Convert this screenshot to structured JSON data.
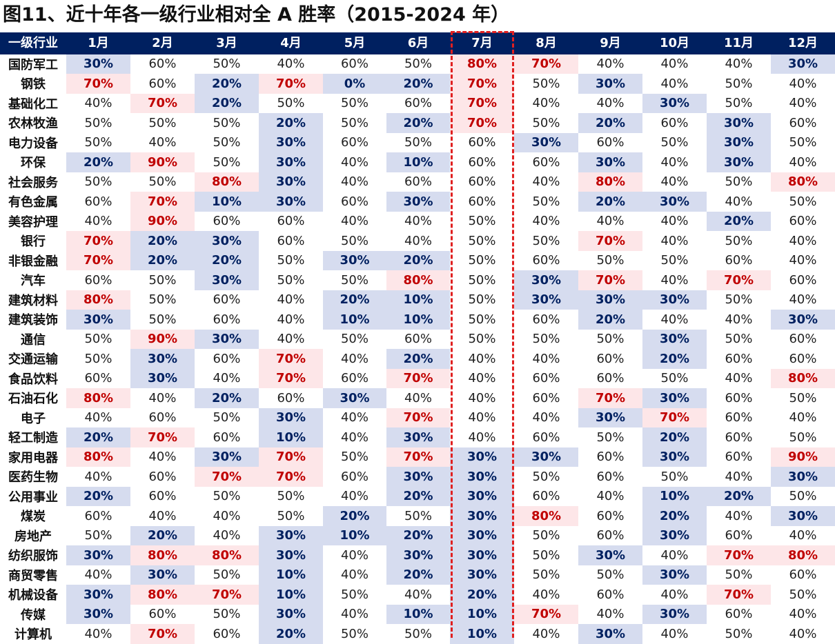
{
  "title": "图11、近十年各一级行业相对全 A 胜率（2015-2024 年）",
  "colors": {
    "header_bg": "#002060",
    "high_bg": "#fde6e8",
    "high_text": "#c00000",
    "low_bg": "#d6dcef",
    "low_text": "#002060",
    "highlight_border": "#e02020"
  },
  "chart_data": {
    "type": "table",
    "highlighted_column": "7月",
    "corner_label": "一级行业",
    "columns": [
      "1月",
      "2月",
      "3月",
      "4月",
      "5月",
      "6月",
      "7月",
      "8月",
      "9月",
      "10月",
      "11月",
      "12月"
    ],
    "rows": [
      {
        "label": "国防军工",
        "values": [
          "30%",
          "60%",
          "50%",
          "40%",
          "60%",
          "50%",
          "80%",
          "70%",
          "40%",
          "40%",
          "40%",
          "30%"
        ]
      },
      {
        "label": "钢铁",
        "values": [
          "70%",
          "60%",
          "20%",
          "70%",
          "0%",
          "20%",
          "70%",
          "50%",
          "30%",
          "40%",
          "50%",
          "40%"
        ]
      },
      {
        "label": "基础化工",
        "values": [
          "40%",
          "70%",
          "20%",
          "50%",
          "50%",
          "60%",
          "70%",
          "40%",
          "40%",
          "30%",
          "50%",
          "40%"
        ]
      },
      {
        "label": "农林牧渔",
        "values": [
          "50%",
          "50%",
          "50%",
          "20%",
          "50%",
          "20%",
          "70%",
          "50%",
          "20%",
          "60%",
          "30%",
          "60%"
        ]
      },
      {
        "label": "电力设备",
        "values": [
          "50%",
          "40%",
          "50%",
          "30%",
          "60%",
          "50%",
          "60%",
          "30%",
          "60%",
          "50%",
          "30%",
          "50%"
        ]
      },
      {
        "label": "环保",
        "values": [
          "20%",
          "90%",
          "50%",
          "30%",
          "40%",
          "10%",
          "60%",
          "60%",
          "30%",
          "40%",
          "30%",
          "40%"
        ]
      },
      {
        "label": "社会服务",
        "values": [
          "50%",
          "50%",
          "80%",
          "30%",
          "40%",
          "60%",
          "60%",
          "40%",
          "80%",
          "40%",
          "50%",
          "80%"
        ]
      },
      {
        "label": "有色金属",
        "values": [
          "60%",
          "70%",
          "10%",
          "30%",
          "60%",
          "30%",
          "60%",
          "50%",
          "20%",
          "30%",
          "40%",
          "50%"
        ]
      },
      {
        "label": "美容护理",
        "values": [
          "40%",
          "90%",
          "60%",
          "60%",
          "40%",
          "40%",
          "50%",
          "40%",
          "40%",
          "40%",
          "20%",
          "60%"
        ]
      },
      {
        "label": "银行",
        "values": [
          "70%",
          "20%",
          "30%",
          "60%",
          "50%",
          "40%",
          "50%",
          "50%",
          "70%",
          "40%",
          "50%",
          "40%"
        ]
      },
      {
        "label": "非银金融",
        "values": [
          "70%",
          "20%",
          "20%",
          "50%",
          "30%",
          "20%",
          "50%",
          "60%",
          "50%",
          "50%",
          "60%",
          "40%"
        ]
      },
      {
        "label": "汽车",
        "values": [
          "60%",
          "50%",
          "30%",
          "50%",
          "50%",
          "80%",
          "50%",
          "30%",
          "70%",
          "40%",
          "70%",
          "60%"
        ]
      },
      {
        "label": "建筑材料",
        "values": [
          "80%",
          "50%",
          "60%",
          "40%",
          "20%",
          "10%",
          "50%",
          "30%",
          "30%",
          "30%",
          "50%",
          "40%"
        ]
      },
      {
        "label": "建筑装饰",
        "values": [
          "30%",
          "50%",
          "60%",
          "40%",
          "10%",
          "10%",
          "50%",
          "60%",
          "20%",
          "40%",
          "40%",
          "30%"
        ]
      },
      {
        "label": "通信",
        "values": [
          "50%",
          "90%",
          "30%",
          "40%",
          "50%",
          "60%",
          "50%",
          "50%",
          "50%",
          "30%",
          "50%",
          "60%"
        ]
      },
      {
        "label": "交通运输",
        "values": [
          "50%",
          "30%",
          "60%",
          "70%",
          "40%",
          "20%",
          "40%",
          "40%",
          "60%",
          "20%",
          "60%",
          "60%"
        ]
      },
      {
        "label": "食品饮料",
        "values": [
          "60%",
          "30%",
          "40%",
          "70%",
          "60%",
          "70%",
          "40%",
          "60%",
          "60%",
          "50%",
          "40%",
          "80%"
        ]
      },
      {
        "label": "石油石化",
        "values": [
          "80%",
          "40%",
          "20%",
          "60%",
          "30%",
          "40%",
          "40%",
          "60%",
          "70%",
          "30%",
          "60%",
          "50%"
        ]
      },
      {
        "label": "电子",
        "values": [
          "40%",
          "60%",
          "50%",
          "30%",
          "40%",
          "70%",
          "40%",
          "40%",
          "30%",
          "70%",
          "60%",
          "40%"
        ]
      },
      {
        "label": "轻工制造",
        "values": [
          "20%",
          "70%",
          "60%",
          "10%",
          "40%",
          "30%",
          "40%",
          "60%",
          "50%",
          "20%",
          "60%",
          "50%"
        ]
      },
      {
        "label": "家用电器",
        "values": [
          "80%",
          "40%",
          "30%",
          "70%",
          "50%",
          "70%",
          "30%",
          "30%",
          "60%",
          "30%",
          "60%",
          "90%"
        ]
      },
      {
        "label": "医药生物",
        "values": [
          "40%",
          "60%",
          "70%",
          "70%",
          "60%",
          "30%",
          "30%",
          "50%",
          "60%",
          "50%",
          "40%",
          "30%"
        ]
      },
      {
        "label": "公用事业",
        "values": [
          "20%",
          "60%",
          "50%",
          "50%",
          "40%",
          "20%",
          "30%",
          "60%",
          "40%",
          "10%",
          "20%",
          "50%"
        ]
      },
      {
        "label": "煤炭",
        "values": [
          "60%",
          "40%",
          "40%",
          "50%",
          "20%",
          "50%",
          "30%",
          "80%",
          "60%",
          "20%",
          "40%",
          "30%"
        ]
      },
      {
        "label": "房地产",
        "values": [
          "50%",
          "20%",
          "40%",
          "30%",
          "10%",
          "20%",
          "30%",
          "50%",
          "60%",
          "30%",
          "60%",
          "40%"
        ]
      },
      {
        "label": "纺织服饰",
        "values": [
          "30%",
          "80%",
          "80%",
          "30%",
          "40%",
          "30%",
          "30%",
          "50%",
          "30%",
          "40%",
          "70%",
          "80%"
        ]
      },
      {
        "label": "商贸零售",
        "values": [
          "40%",
          "30%",
          "50%",
          "10%",
          "40%",
          "20%",
          "30%",
          "50%",
          "50%",
          "30%",
          "50%",
          "60%"
        ]
      },
      {
        "label": "机械设备",
        "values": [
          "30%",
          "80%",
          "70%",
          "10%",
          "50%",
          "40%",
          "20%",
          "40%",
          "60%",
          "40%",
          "70%",
          "50%"
        ]
      },
      {
        "label": "传媒",
        "values": [
          "30%",
          "60%",
          "50%",
          "30%",
          "40%",
          "10%",
          "10%",
          "70%",
          "40%",
          "30%",
          "60%",
          "40%"
        ]
      },
      {
        "label": "计算机",
        "values": [
          "40%",
          "70%",
          "60%",
          "20%",
          "50%",
          "50%",
          "10%",
          "40%",
          "30%",
          "40%",
          "50%",
          "40%"
        ]
      }
    ]
  }
}
